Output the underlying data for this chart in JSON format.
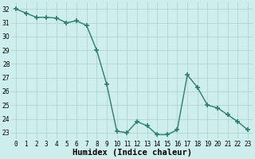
{
  "x": [
    0,
    1,
    2,
    3,
    4,
    5,
    6,
    7,
    8,
    9,
    10,
    11,
    12,
    13,
    14,
    15,
    16,
    17,
    18,
    19,
    20,
    21,
    22,
    23
  ],
  "y": [
    32.0,
    31.7,
    31.4,
    31.4,
    31.35,
    31.0,
    31.15,
    30.8,
    29.0,
    26.5,
    23.1,
    23.0,
    23.8,
    23.5,
    22.85,
    22.85,
    23.2,
    27.2,
    26.3,
    25.0,
    24.8,
    24.3,
    23.8,
    23.2
  ],
  "line_color": "#2e7d6e",
  "marker": "+",
  "marker_size": 4,
  "marker_lw": 1.2,
  "line_width": 1.0,
  "bg_color": "#ceeeed",
  "grid_color": "#b0d4d0",
  "xlabel": "Humidex (Indice chaleur)",
  "xlim": [
    -0.5,
    23.5
  ],
  "ylim": [
    22.5,
    32.5
  ],
  "yticks": [
    23,
    24,
    25,
    26,
    27,
    28,
    29,
    30,
    31,
    32
  ],
  "xticks": [
    0,
    1,
    2,
    3,
    4,
    5,
    6,
    7,
    8,
    9,
    10,
    11,
    12,
    13,
    14,
    15,
    16,
    17,
    18,
    19,
    20,
    21,
    22,
    23
  ],
  "tick_label_fontsize": 5.5,
  "xlabel_fontsize": 7.5,
  "figwidth": 3.2,
  "figheight": 2.0,
  "dpi": 100
}
